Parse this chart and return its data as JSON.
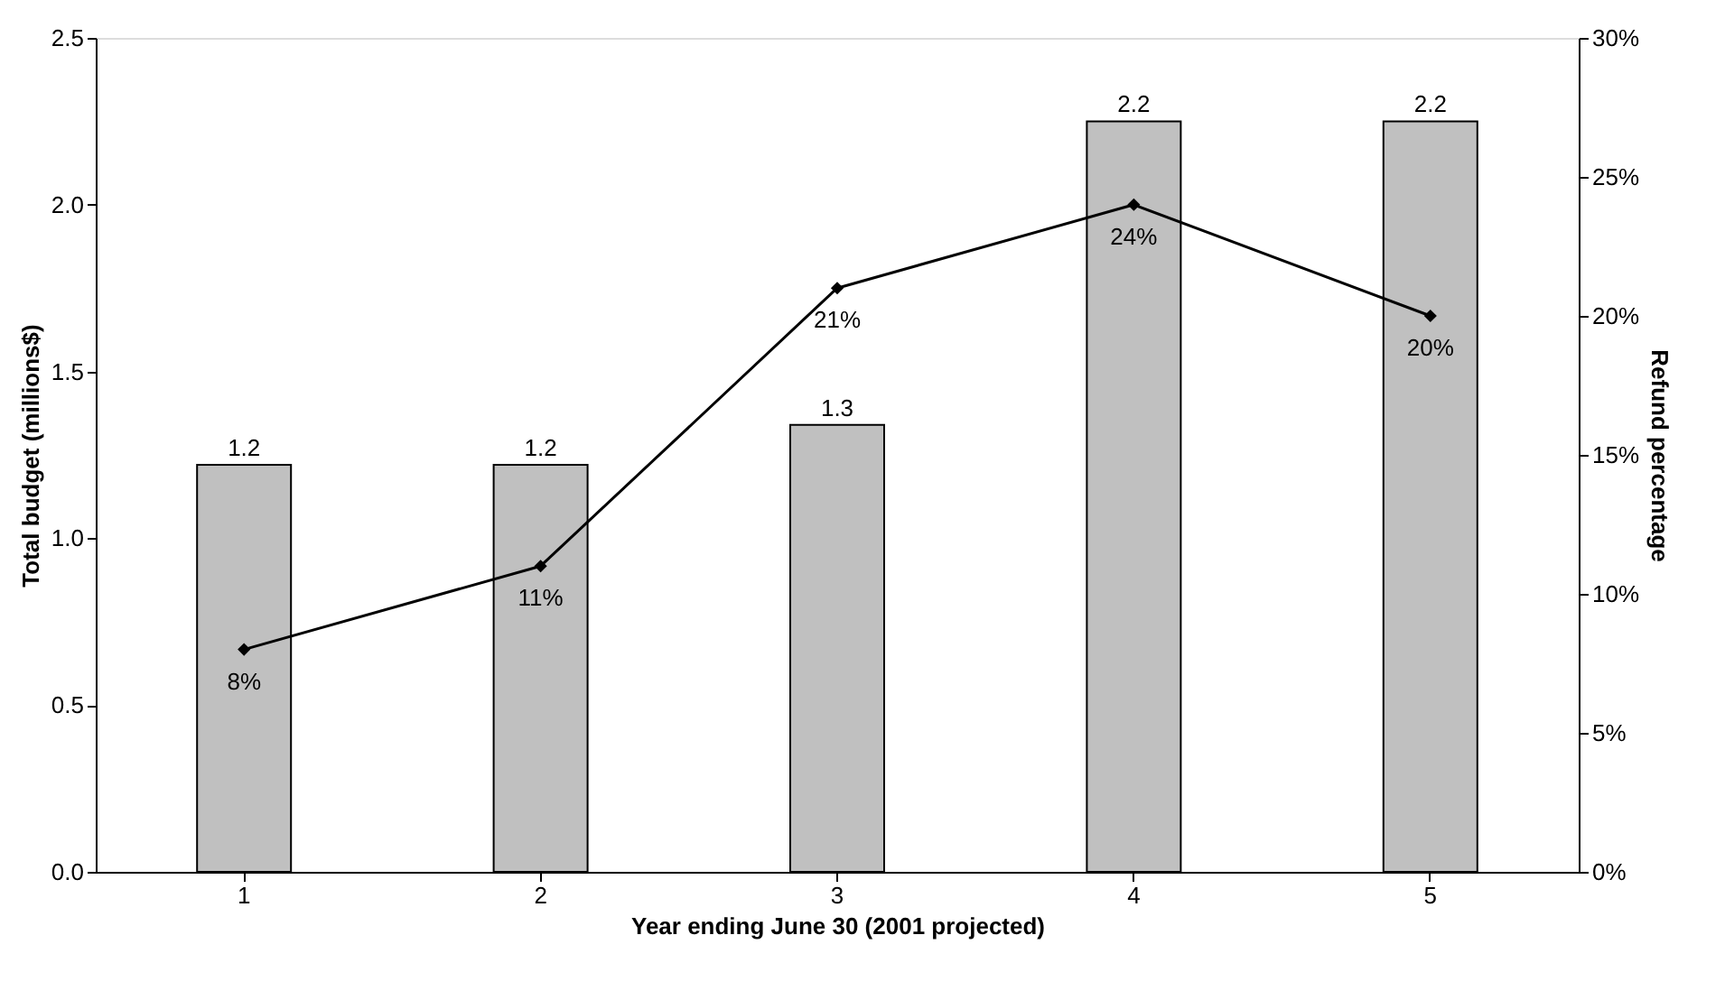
{
  "chart_data": {
    "type": "bar",
    "xlabel": "Year ending June 30 (2001 projected)",
    "ylabel": "Total budget (millions$)",
    "y2label": "Refund percentage",
    "categories": [
      "1",
      "2",
      "3",
      "4",
      "5"
    ],
    "series": [
      {
        "color": "#c0c0c0",
        "values": [
          1.22,
          1.22,
          1.34,
          2.25,
          2.25
        ],
        "value_labels": [
          "1.2",
          "1.2",
          "1.3",
          "2.2",
          "2.2"
        ]
      },
      {
        "type": "line",
        "axis": "y2",
        "color": "#000000",
        "marker": "diamond",
        "values": [
          8,
          11,
          21,
          24,
          20
        ],
        "value_labels": [
          "8%",
          "11%",
          "21%",
          "24%",
          "20%"
        ]
      }
    ],
    "ylim": [
      0,
      2.5
    ],
    "yticks": [
      {
        "value": 0,
        "label": "0.0"
      },
      0.5,
      {
        "value": 1,
        "label": "1.0"
      },
      1.5,
      {
        "value": 2,
        "label": "2.0"
      },
      2.5
    ],
    "y2lim": [
      0,
      30
    ],
    "y2ticks": [
      {
        "value": 0,
        "label": "0%"
      },
      {
        "value": 5,
        "label": "5%"
      },
      {
        "value": 10,
        "label": "10%"
      },
      {
        "value": 15,
        "label": "15%"
      },
      {
        "value": 20,
        "label": "20%"
      },
      {
        "value": 25,
        "label": "25%"
      },
      {
        "value": 30,
        "label": "30%"
      }
    ],
    "grid": false
  }
}
